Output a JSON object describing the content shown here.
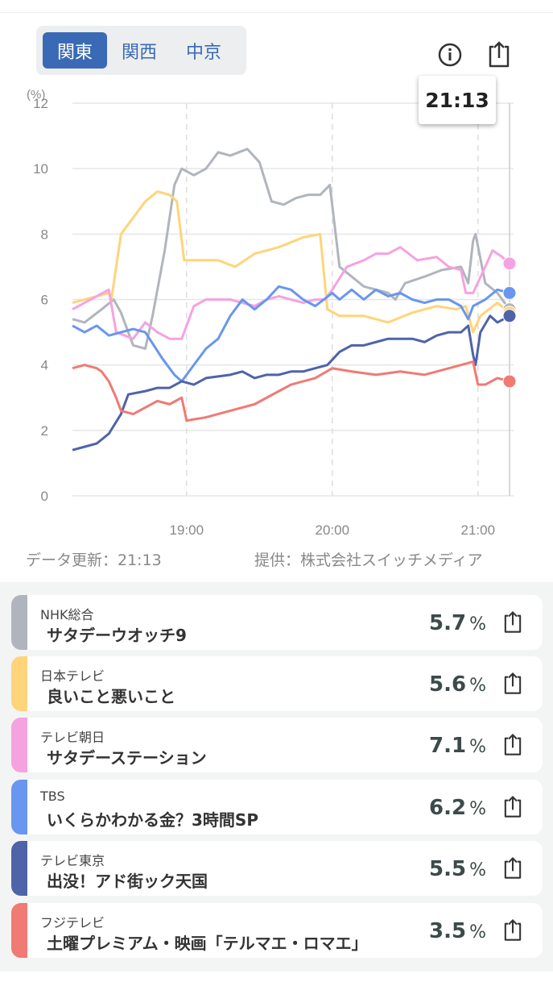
{
  "region_tabs": [
    {
      "label": "関東",
      "active": true
    },
    {
      "label": "関西",
      "active": false
    },
    {
      "label": "中京",
      "active": false
    }
  ],
  "tooltip_time": "21:13",
  "footer": {
    "updated": "データ更新：21:13",
    "provider": "提供：株式会社スイッチメディア"
  },
  "chart_data": {
    "type": "line",
    "ylabel": "(%)",
    "ylim": [
      0,
      12
    ],
    "yticks": [
      0,
      2,
      4,
      6,
      8,
      10,
      12
    ],
    "x_unit": "minutes since 18:13",
    "xlim": [
      0,
      180
    ],
    "xticks": [
      {
        "x": 47,
        "label": "19:00"
      },
      {
        "x": 107,
        "label": "20:00"
      },
      {
        "x": 167,
        "label": "21:00"
      }
    ],
    "grid": true,
    "series": [
      {
        "name": "NHK総合",
        "color": "#b0b5bd",
        "points": [
          [
            0,
            5.4
          ],
          [
            5,
            5.3
          ],
          [
            12,
            5.7
          ],
          [
            17,
            6.0
          ],
          [
            20,
            5.6
          ],
          [
            25,
            4.6
          ],
          [
            30,
            4.5
          ],
          [
            33,
            5.5
          ],
          [
            38,
            7.5
          ],
          [
            42,
            9.5
          ],
          [
            45,
            10
          ],
          [
            50,
            9.8
          ],
          [
            55,
            10
          ],
          [
            60,
            10.5
          ],
          [
            65,
            10.4
          ],
          [
            72,
            10.6
          ],
          [
            77,
            10.2
          ],
          [
            82,
            9.0
          ],
          [
            87,
            8.9
          ],
          [
            92,
            9.1
          ],
          [
            97,
            9.2
          ],
          [
            102,
            9.2
          ],
          [
            106,
            9.5
          ],
          [
            110,
            7.0
          ],
          [
            115,
            6.7
          ],
          [
            120,
            6.4
          ],
          [
            125,
            6.3
          ],
          [
            130,
            6.2
          ],
          [
            133,
            6.0
          ],
          [
            137,
            6.5
          ],
          [
            145,
            6.7
          ],
          [
            152,
            6.9
          ],
          [
            160,
            7.0
          ],
          [
            163,
            6.5
          ],
          [
            165,
            7.8
          ],
          [
            166,
            8.0
          ],
          [
            170,
            6.5
          ],
          [
            175,
            6.2
          ],
          [
            180,
            5.7
          ]
        ]
      },
      {
        "name": "日本テレビ",
        "color": "#ffd47a",
        "points": [
          [
            0,
            5.9
          ],
          [
            10,
            6.1
          ],
          [
            15,
            6.2
          ],
          [
            16,
            6.0
          ],
          [
            20,
            8.0
          ],
          [
            25,
            8.5
          ],
          [
            30,
            9.0
          ],
          [
            35,
            9.3
          ],
          [
            40,
            9.2
          ],
          [
            43,
            9.0
          ],
          [
            46,
            7.2
          ],
          [
            50,
            7.2
          ],
          [
            60,
            7.2
          ],
          [
            67,
            7.0
          ],
          [
            75,
            7.4
          ],
          [
            85,
            7.6
          ],
          [
            95,
            7.9
          ],
          [
            102,
            8.0
          ],
          [
            105,
            5.7
          ],
          [
            110,
            5.5
          ],
          [
            120,
            5.5
          ],
          [
            130,
            5.3
          ],
          [
            140,
            5.6
          ],
          [
            150,
            5.8
          ],
          [
            158,
            5.7
          ],
          [
            162,
            5.8
          ],
          [
            165,
            5.0
          ],
          [
            168,
            5.5
          ],
          [
            175,
            5.9
          ],
          [
            180,
            5.6
          ]
        ]
      },
      {
        "name": "テレビ朝日",
        "color": "#f4a3e0",
        "points": [
          [
            0,
            5.7
          ],
          [
            10,
            6.1
          ],
          [
            15,
            6.3
          ],
          [
            18,
            5.0
          ],
          [
            25,
            4.8
          ],
          [
            30,
            5.3
          ],
          [
            35,
            5.0
          ],
          [
            40,
            4.8
          ],
          [
            45,
            4.8
          ],
          [
            50,
            5.8
          ],
          [
            55,
            6.0
          ],
          [
            65,
            6.0
          ],
          [
            70,
            5.9
          ],
          [
            75,
            5.8
          ],
          [
            80,
            6.0
          ],
          [
            85,
            6.1
          ],
          [
            90,
            6.0
          ],
          [
            95,
            5.9
          ],
          [
            100,
            6.0
          ],
          [
            104,
            6.0
          ],
          [
            107,
            6.3
          ],
          [
            113,
            7.0
          ],
          [
            120,
            7.2
          ],
          [
            125,
            7.4
          ],
          [
            130,
            7.4
          ],
          [
            135,
            7.6
          ],
          [
            142,
            7.2
          ],
          [
            150,
            7.3
          ],
          [
            155,
            7.0
          ],
          [
            160,
            6.9
          ],
          [
            162,
            6.2
          ],
          [
            165,
            6.2
          ],
          [
            170,
            7.0
          ],
          [
            173,
            7.5
          ],
          [
            177,
            7.3
          ],
          [
            180,
            7.1
          ]
        ]
      },
      {
        "name": "TBS",
        "color": "#6996ee",
        "points": [
          [
            0,
            5.2
          ],
          [
            5,
            5.0
          ],
          [
            10,
            5.2
          ],
          [
            15,
            4.9
          ],
          [
            20,
            5.0
          ],
          [
            25,
            5.1
          ],
          [
            30,
            5.0
          ],
          [
            37,
            4.2
          ],
          [
            42,
            3.7
          ],
          [
            45,
            3.5
          ],
          [
            50,
            4.0
          ],
          [
            55,
            4.5
          ],
          [
            60,
            4.8
          ],
          [
            65,
            5.5
          ],
          [
            70,
            6.0
          ],
          [
            75,
            5.7
          ],
          [
            80,
            6.0
          ],
          [
            85,
            6.4
          ],
          [
            90,
            6.3
          ],
          [
            95,
            6.0
          ],
          [
            100,
            5.8
          ],
          [
            107,
            6.2
          ],
          [
            110,
            6.0
          ],
          [
            115,
            6.3
          ],
          [
            120,
            6.0
          ],
          [
            125,
            6.3
          ],
          [
            130,
            6.1
          ],
          [
            135,
            6.2
          ],
          [
            140,
            6.0
          ],
          [
            145,
            5.9
          ],
          [
            150,
            6.0
          ],
          [
            155,
            6.0
          ],
          [
            160,
            5.8
          ],
          [
            163,
            5.4
          ],
          [
            165,
            5.8
          ],
          [
            170,
            6.0
          ],
          [
            175,
            6.3
          ],
          [
            180,
            6.2
          ]
        ]
      },
      {
        "name": "テレビ東京",
        "color": "#4f63a8",
        "points": [
          [
            0,
            1.4
          ],
          [
            5,
            1.5
          ],
          [
            10,
            1.6
          ],
          [
            15,
            1.9
          ],
          [
            20,
            2.5
          ],
          [
            23,
            3.1
          ],
          [
            30,
            3.2
          ],
          [
            35,
            3.3
          ],
          [
            40,
            3.3
          ],
          [
            45,
            3.5
          ],
          [
            50,
            3.4
          ],
          [
            55,
            3.6
          ],
          [
            65,
            3.7
          ],
          [
            70,
            3.8
          ],
          [
            75,
            3.6
          ],
          [
            80,
            3.7
          ],
          [
            85,
            3.7
          ],
          [
            90,
            3.8
          ],
          [
            95,
            3.8
          ],
          [
            100,
            3.9
          ],
          [
            105,
            4.0
          ],
          [
            110,
            4.4
          ],
          [
            115,
            4.6
          ],
          [
            120,
            4.6
          ],
          [
            125,
            4.7
          ],
          [
            130,
            4.8
          ],
          [
            140,
            4.8
          ],
          [
            145,
            4.7
          ],
          [
            150,
            4.9
          ],
          [
            155,
            5.0
          ],
          [
            160,
            5.0
          ],
          [
            163,
            5.2
          ],
          [
            165,
            4.3
          ],
          [
            166,
            4.0
          ],
          [
            168,
            5.0
          ],
          [
            172,
            5.5
          ],
          [
            175,
            5.3
          ],
          [
            180,
            5.5
          ]
        ]
      },
      {
        "name": "フジテレビ",
        "color": "#f07a74",
        "points": [
          [
            0,
            3.9
          ],
          [
            5,
            4.0
          ],
          [
            10,
            3.9
          ],
          [
            12,
            3.8
          ],
          [
            15,
            3.5
          ],
          [
            18,
            3.0
          ],
          [
            20,
            2.6
          ],
          [
            25,
            2.5
          ],
          [
            30,
            2.7
          ],
          [
            35,
            2.9
          ],
          [
            40,
            2.8
          ],
          [
            45,
            3.0
          ],
          [
            47,
            2.3
          ],
          [
            55,
            2.4
          ],
          [
            65,
            2.6
          ],
          [
            75,
            2.8
          ],
          [
            80,
            3.0
          ],
          [
            85,
            3.2
          ],
          [
            90,
            3.4
          ],
          [
            100,
            3.6
          ],
          [
            107,
            3.9
          ],
          [
            115,
            3.8
          ],
          [
            125,
            3.7
          ],
          [
            135,
            3.8
          ],
          [
            145,
            3.7
          ],
          [
            150,
            3.8
          ],
          [
            160,
            4.0
          ],
          [
            165,
            4.1
          ],
          [
            167,
            3.4
          ],
          [
            170,
            3.4
          ],
          [
            175,
            3.6
          ],
          [
            180,
            3.5
          ]
        ]
      }
    ]
  },
  "programs": [
    {
      "station": "NHK総合",
      "title": "サタデーウオッチ9",
      "value": "5.7",
      "unit": "%",
      "color": "#b0b5bd"
    },
    {
      "station": "日本テレビ",
      "title": "良いこと悪いこと",
      "value": "5.6",
      "unit": "%",
      "color": "#ffd47a"
    },
    {
      "station": "テレビ朝日",
      "title": "サタデーステーション",
      "value": "7.1",
      "unit": "%",
      "color": "#f4a3e0"
    },
    {
      "station": "TBS",
      "title": "いくらかわかる金？3時間SP",
      "value": "6.2",
      "unit": "%",
      "color": "#6996ee"
    },
    {
      "station": "テレビ東京",
      "title": "出没！アド街ック天国",
      "value": "5.5",
      "unit": "%",
      "color": "#4f63a8"
    },
    {
      "station": "フジテレビ",
      "title": "土曜プレミアム・映画「テルマエ・ロマエ」",
      "value": "3.5",
      "unit": "%",
      "color": "#f07a74"
    }
  ]
}
